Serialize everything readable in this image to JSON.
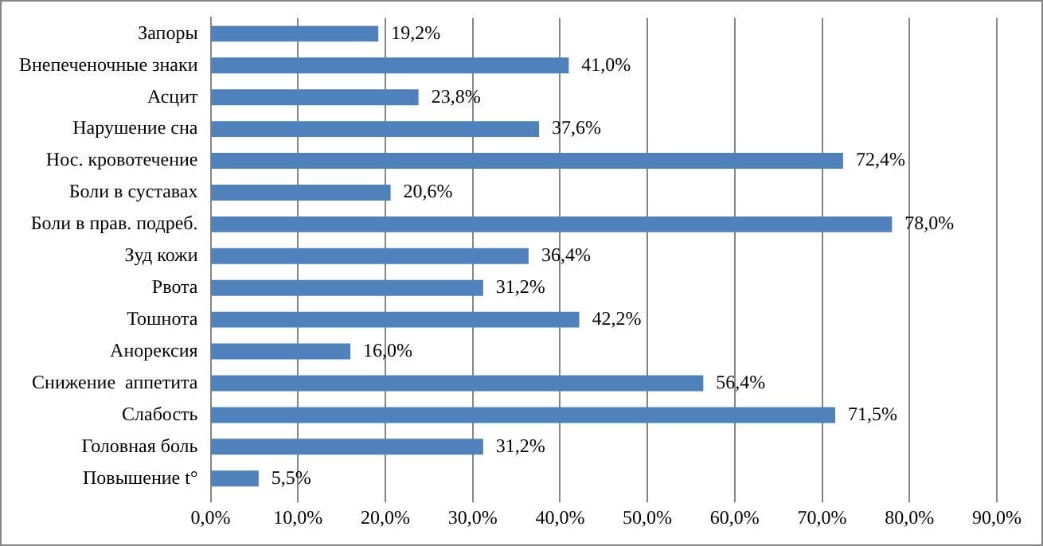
{
  "chart_data": {
    "type": "bar",
    "orientation": "horizontal",
    "categories": [
      "Запоры",
      "Внепеченочные знаки",
      "Асцит",
      "Нарушение сна",
      "Нос. кровотечение",
      "Боли в суставах",
      "Боли в прав. подреб.",
      "Зуд кожи",
      "Рвота",
      "Тошнота",
      "Анорексия",
      "Снижение  аппетита",
      "Слабость",
      "Головная боль",
      "Повышение t°"
    ],
    "values": [
      19.2,
      41.0,
      23.8,
      37.6,
      72.4,
      20.6,
      78.0,
      36.4,
      31.2,
      42.2,
      16.0,
      56.4,
      71.5,
      31.2,
      5.5
    ],
    "value_labels": [
      "19,2%",
      "41,0%",
      "23,8%",
      "37,6%",
      "72,4%",
      "20,6%",
      "78,0%",
      "36,4%",
      "31,2%",
      "42,2%",
      "16,0%",
      "56,4%",
      "71,5%",
      "31,2%",
      "5,5%"
    ],
    "color": "#4f81bd",
    "xlim": [
      0,
      90
    ],
    "xticks": [
      {
        "value": 0,
        "label": "0,0%"
      },
      {
        "value": 10,
        "label": "10,0%"
      },
      {
        "value": 20,
        "label": "20,0%"
      },
      {
        "value": 30,
        "label": "30,0%"
      },
      {
        "value": 40,
        "label": "40,0%"
      },
      {
        "value": 50,
        "label": "50,0%"
      },
      {
        "value": 60,
        "label": "60,0%"
      },
      {
        "value": 70,
        "label": "70,0%"
      },
      {
        "value": 80,
        "label": "80,0%"
      },
      {
        "value": 90,
        "label": "90,0%"
      }
    ],
    "grid": "x",
    "legend": false
  }
}
